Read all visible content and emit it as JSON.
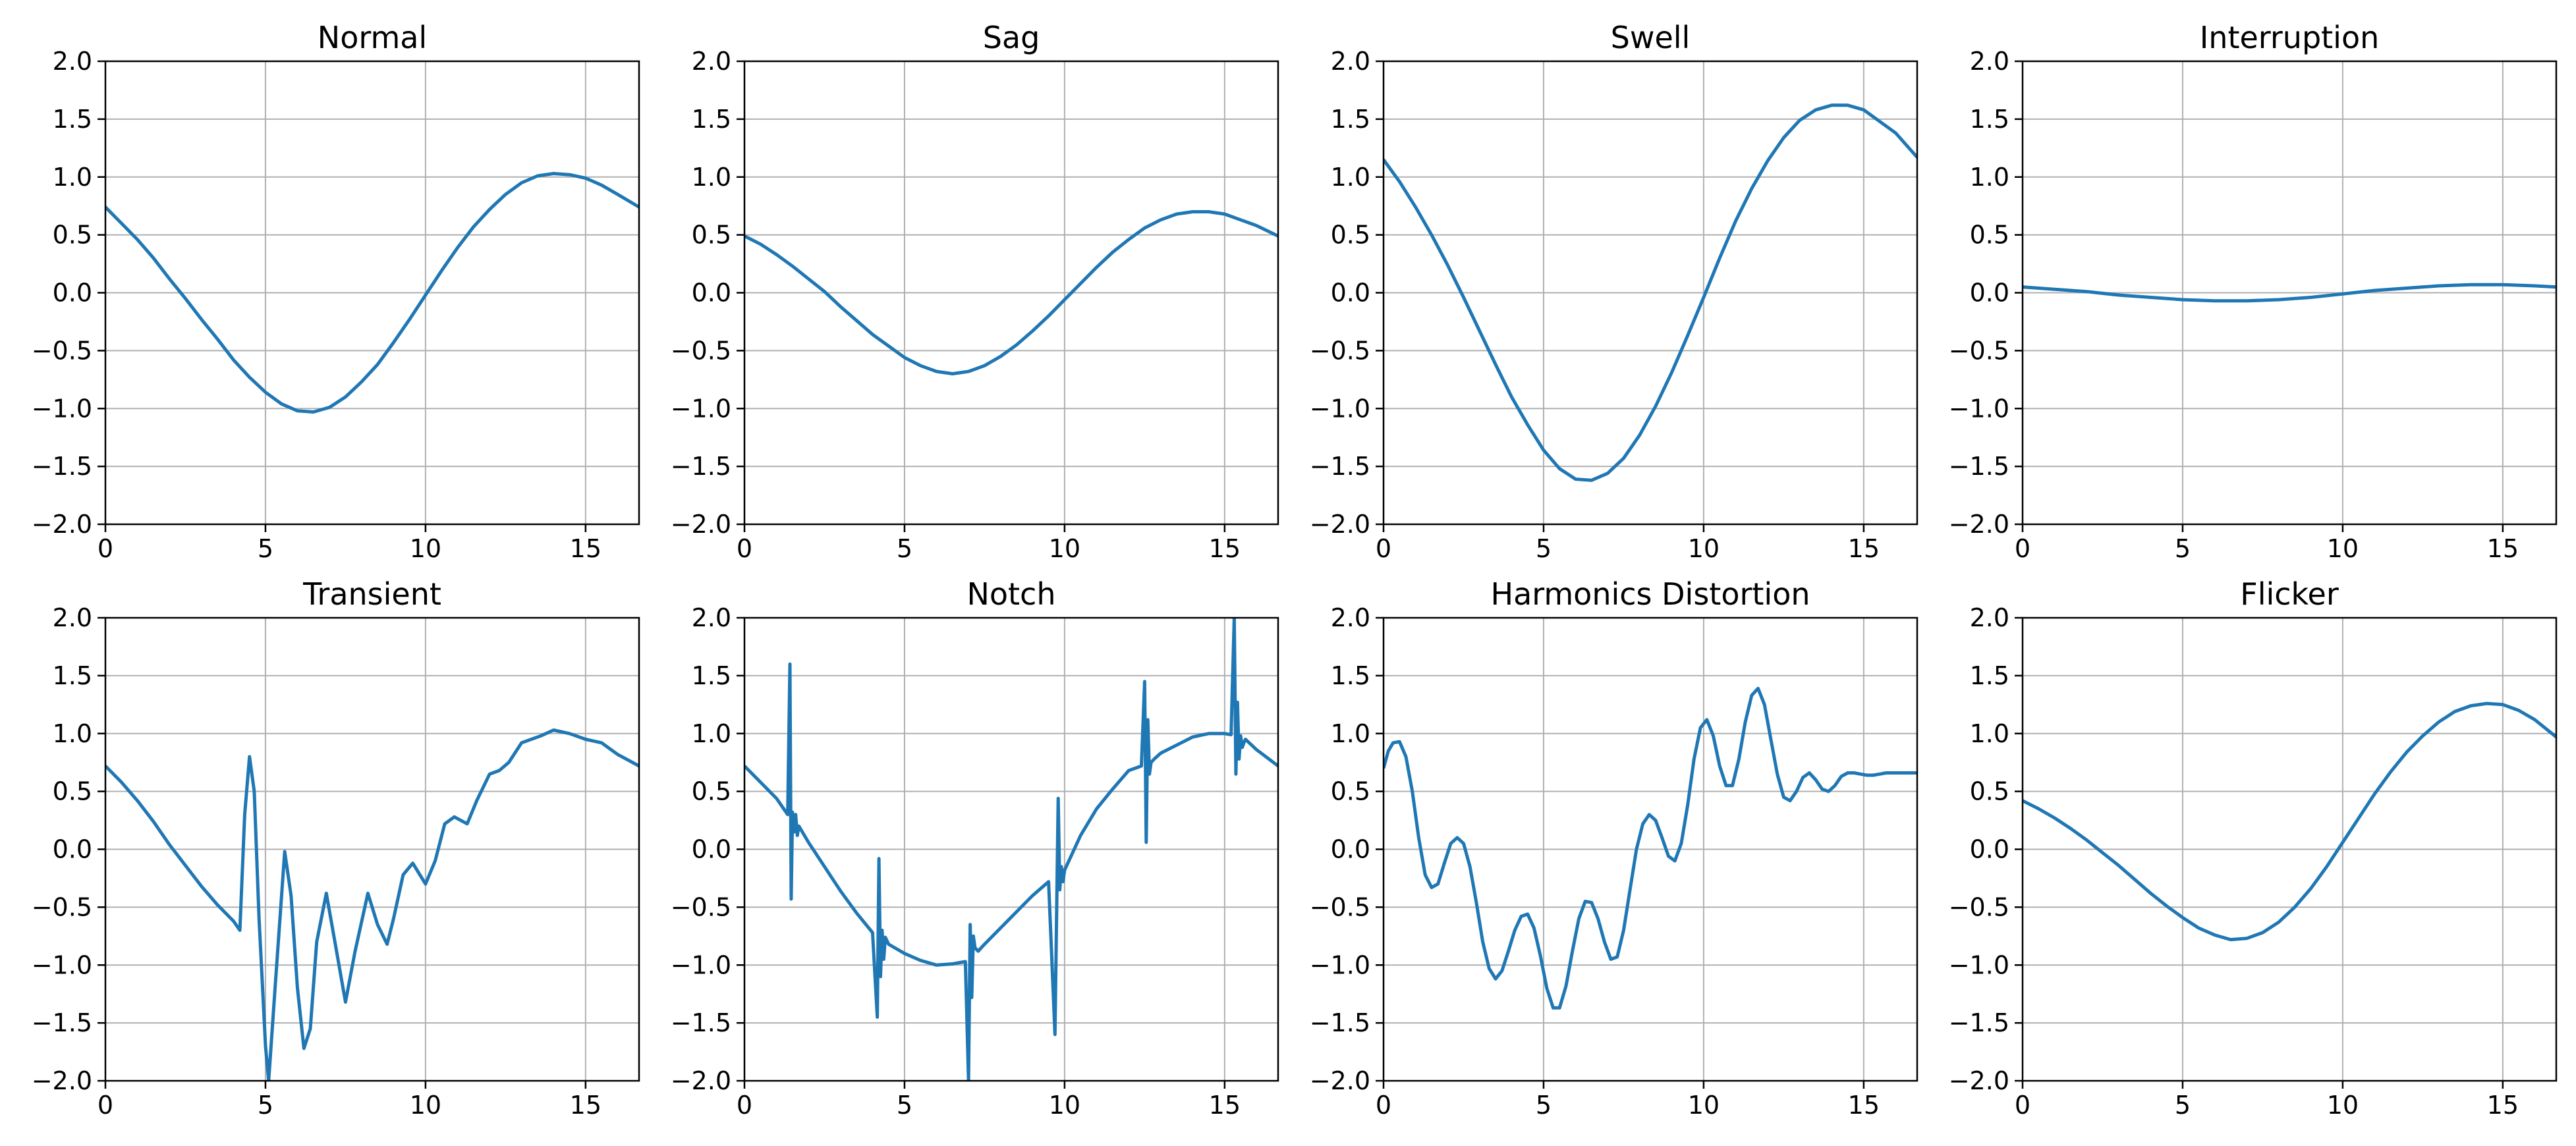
{
  "chart_data": [
    {
      "type": "line",
      "title": "Normal",
      "xlim": [
        0,
        16.67
      ],
      "ylim": [
        -2,
        2
      ],
      "grid": true,
      "xticks": [
        0,
        5,
        10,
        15
      ],
      "yticks": [
        -2,
        -1.5,
        -1,
        -0.5,
        0,
        0.5,
        1,
        1.5,
        2
      ],
      "xtick_labels": [
        "0",
        "5",
        "10",
        "15"
      ],
      "ytick_labels": [
        "−2.0",
        "−1.5",
        "−1.0",
        "−0.5",
        "0.0",
        "0.5",
        "1.0",
        "1.5",
        "2.0"
      ],
      "color": "#1f77b4",
      "series": [
        {
          "x": [
            0,
            0.5,
            1,
            1.5,
            2,
            2.5,
            3,
            3.5,
            4,
            4.5,
            5,
            5.5,
            6,
            6.5,
            7,
            7.5,
            8,
            8.5,
            9,
            9.5,
            10,
            10.5,
            11,
            11.5,
            12,
            12.5,
            13,
            13.5,
            14,
            14.5,
            15,
            15.5,
            16,
            16.67
          ],
          "y": [
            0.74,
            0.6,
            0.46,
            0.3,
            0.12,
            -0.05,
            -0.23,
            -0.4,
            -0.58,
            -0.73,
            -0.86,
            -0.96,
            -1.02,
            -1.03,
            -0.99,
            -0.9,
            -0.77,
            -0.62,
            -0.43,
            -0.23,
            -0.02,
            0.19,
            0.39,
            0.57,
            0.72,
            0.85,
            0.95,
            1.01,
            1.03,
            1.02,
            0.99,
            0.93,
            0.85,
            0.74
          ]
        }
      ]
    },
    {
      "type": "line",
      "title": "Sag",
      "xlim": [
        0,
        16.67
      ],
      "ylim": [
        -2,
        2
      ],
      "grid": true,
      "xticks": [
        0,
        5,
        10,
        15
      ],
      "yticks": [
        -2,
        -1.5,
        -1,
        -0.5,
        0,
        0.5,
        1,
        1.5,
        2
      ],
      "xtick_labels": [
        "0",
        "5",
        "10",
        "15"
      ],
      "ytick_labels": [
        "−2.0",
        "−1.5",
        "−1.0",
        "−0.5",
        "0.0",
        "0.5",
        "1.0",
        "1.5",
        "2.0"
      ],
      "color": "#1f77b4",
      "series": [
        {
          "x": [
            0,
            0.5,
            1,
            1.5,
            2,
            2.5,
            3,
            3.5,
            4,
            4.5,
            5,
            5.5,
            6,
            6.5,
            7,
            7.5,
            8,
            8.5,
            9,
            9.5,
            10,
            10.5,
            11,
            11.5,
            12,
            12.5,
            13,
            13.5,
            14,
            14.5,
            15,
            15.5,
            16,
            16.67
          ],
          "y": [
            0.49,
            0.42,
            0.33,
            0.23,
            0.12,
            0.01,
            -0.12,
            -0.24,
            -0.36,
            -0.46,
            -0.56,
            -0.63,
            -0.68,
            -0.7,
            -0.68,
            -0.63,
            -0.55,
            -0.45,
            -0.33,
            -0.2,
            -0.06,
            0.08,
            0.22,
            0.35,
            0.46,
            0.56,
            0.63,
            0.68,
            0.7,
            0.7,
            0.68,
            0.63,
            0.58,
            0.49
          ]
        }
      ]
    },
    {
      "type": "line",
      "title": "Swell",
      "xlim": [
        0,
        16.67
      ],
      "ylim": [
        -2,
        2
      ],
      "grid": true,
      "xticks": [
        0,
        5,
        10,
        15
      ],
      "yticks": [
        -2,
        -1.5,
        -1,
        -0.5,
        0,
        0.5,
        1,
        1.5,
        2
      ],
      "xtick_labels": [
        "0",
        "5",
        "10",
        "15"
      ],
      "ytick_labels": [
        "−2.0",
        "−1.5",
        "−1.0",
        "−0.5",
        "0.0",
        "0.5",
        "1.0",
        "1.5",
        "2.0"
      ],
      "color": "#1f77b4",
      "series": [
        {
          "x": [
            0,
            0.5,
            1,
            1.5,
            2,
            2.5,
            3,
            3.5,
            4,
            4.5,
            5,
            5.5,
            6,
            6.5,
            7,
            7.5,
            8,
            8.5,
            9,
            9.5,
            10,
            10.5,
            11,
            11.5,
            12,
            12.5,
            13,
            13.5,
            14,
            14.5,
            15,
            15.5,
            16,
            16.67
          ],
          "y": [
            1.15,
            0.96,
            0.74,
            0.5,
            0.24,
            -0.04,
            -0.33,
            -0.62,
            -0.9,
            -1.14,
            -1.36,
            -1.52,
            -1.61,
            -1.62,
            -1.56,
            -1.43,
            -1.23,
            -0.98,
            -0.69,
            -0.37,
            -0.04,
            0.3,
            0.62,
            0.9,
            1.14,
            1.34,
            1.49,
            1.58,
            1.62,
            1.62,
            1.58,
            1.48,
            1.38,
            1.17
          ]
        }
      ]
    },
    {
      "type": "line",
      "title": "Interruption",
      "xlim": [
        0,
        16.67
      ],
      "ylim": [
        -2,
        2
      ],
      "grid": true,
      "xticks": [
        0,
        5,
        10,
        15
      ],
      "yticks": [
        -2,
        -1.5,
        -1,
        -0.5,
        0,
        0.5,
        1,
        1.5,
        2
      ],
      "xtick_labels": [
        "0",
        "5",
        "10",
        "15"
      ],
      "ytick_labels": [
        "−2.0",
        "−1.5",
        "−1.0",
        "−0.5",
        "0.0",
        "0.5",
        "1.0",
        "1.5",
        "2.0"
      ],
      "color": "#1f77b4",
      "series": [
        {
          "x": [
            0,
            1,
            2,
            3,
            4,
            5,
            6,
            6.5,
            7,
            8,
            9,
            10,
            11,
            12,
            13,
            14,
            15,
            16,
            16.67
          ],
          "y": [
            0.05,
            0.03,
            0.01,
            -0.02,
            -0.04,
            -0.06,
            -0.07,
            -0.07,
            -0.07,
            -0.06,
            -0.04,
            -0.01,
            0.02,
            0.04,
            0.06,
            0.07,
            0.07,
            0.06,
            0.05
          ]
        }
      ]
    },
    {
      "type": "line",
      "title": "Transient",
      "xlim": [
        0,
        16.67
      ],
      "ylim": [
        -2,
        2
      ],
      "grid": true,
      "xticks": [
        0,
        5,
        10,
        15
      ],
      "yticks": [
        -2,
        -1.5,
        -1,
        -0.5,
        0,
        0.5,
        1,
        1.5,
        2
      ],
      "xtick_labels": [
        "0",
        "5",
        "10",
        "15"
      ],
      "ytick_labels": [
        "−2.0",
        "−1.5",
        "−1.0",
        "−0.5",
        "0.0",
        "0.5",
        "1.0",
        "1.5",
        "2.0"
      ],
      "color": "#1f77b4",
      "series": [
        {
          "x": [
            0,
            0.5,
            1,
            1.5,
            2,
            2.5,
            3,
            3.5,
            4,
            4.2,
            4.35,
            4.5,
            4.65,
            4.8,
            5.0,
            5.1,
            5.3,
            5.6,
            5.8,
            6.0,
            6.2,
            6.4,
            6.6,
            6.9,
            7.2,
            7.5,
            7.8,
            8.2,
            8.5,
            8.8,
            9.0,
            9.3,
            9.6,
            10.0,
            10.3,
            10.6,
            10.9,
            11.3,
            11.6,
            12.0,
            12.3,
            12.6,
            13.0,
            13.3,
            13.6,
            14.0,
            14.5,
            15.0,
            15.5,
            16.0,
            16.67
          ],
          "y": [
            0.72,
            0.58,
            0.42,
            0.24,
            0.04,
            -0.14,
            -0.32,
            -0.48,
            -0.62,
            -0.7,
            0.3,
            0.8,
            0.5,
            -0.6,
            -1.7,
            -2.0,
            -1.2,
            -0.02,
            -0.4,
            -1.2,
            -1.72,
            -1.55,
            -0.8,
            -0.38,
            -0.85,
            -1.32,
            -0.88,
            -0.38,
            -0.65,
            -0.82,
            -0.6,
            -0.22,
            -0.12,
            -0.3,
            -0.1,
            0.22,
            0.28,
            0.22,
            0.42,
            0.65,
            0.68,
            0.75,
            0.92,
            0.95,
            0.98,
            1.03,
            1.0,
            0.95,
            0.92,
            0.82,
            0.72
          ]
        }
      ]
    },
    {
      "type": "line",
      "title": "Notch",
      "xlim": [
        0,
        16.67
      ],
      "ylim": [
        -2,
        2
      ],
      "grid": true,
      "xticks": [
        0,
        5,
        10,
        15
      ],
      "yticks": [
        -2,
        -1.5,
        -1,
        -0.5,
        0,
        0.5,
        1,
        1.5,
        2
      ],
      "xtick_labels": [
        "0",
        "5",
        "10",
        "15"
      ],
      "ytick_labels": [
        "−2.0",
        "−1.5",
        "−1.0",
        "−0.5",
        "0.0",
        "0.5",
        "1.0",
        "1.5",
        "2.0"
      ],
      "color": "#1f77b4",
      "series": [
        {
          "x": [
            0,
            0.5,
            1,
            1.35,
            1.42,
            1.46,
            1.5,
            1.55,
            1.6,
            1.65,
            1.7,
            2,
            2.5,
            3,
            3.5,
            4,
            4.15,
            4.2,
            4.25,
            4.3,
            4.35,
            4.4,
            4.5,
            5,
            5.5,
            6,
            6.5,
            6.9,
            7.0,
            7.05,
            7.1,
            7.15,
            7.2,
            7.3,
            7.5,
            8,
            8.5,
            9,
            9.5,
            9.7,
            9.8,
            9.85,
            9.9,
            9.95,
            10.0,
            10.1,
            10.5,
            11,
            11.5,
            12,
            12.4,
            12.5,
            12.55,
            12.6,
            12.65,
            12.7,
            12.8,
            13,
            13.5,
            14,
            14.5,
            15,
            15.2,
            15.3,
            15.35,
            15.4,
            15.45,
            15.5,
            15.55,
            15.6,
            15.65,
            16,
            16.67
          ],
          "y": [
            0.72,
            0.58,
            0.44,
            0.3,
            1.6,
            -0.43,
            0.32,
            0.15,
            0.3,
            0.12,
            0.2,
            0.06,
            -0.15,
            -0.36,
            -0.55,
            -0.72,
            -1.45,
            -0.08,
            -1.1,
            -0.7,
            -0.95,
            -0.76,
            -0.82,
            -0.9,
            -0.96,
            -1.0,
            -0.99,
            -0.97,
            -2.0,
            -0.65,
            -1.28,
            -0.75,
            -0.85,
            -0.88,
            -0.82,
            -0.68,
            -0.54,
            -0.4,
            -0.28,
            -1.6,
            0.44,
            -0.35,
            -0.15,
            -0.28,
            -0.18,
            -0.12,
            0.12,
            0.35,
            0.52,
            0.68,
            0.72,
            1.45,
            0.06,
            1.12,
            0.65,
            0.75,
            0.78,
            0.83,
            0.9,
            0.97,
            1.0,
            1.0,
            0.99,
            2.0,
            0.65,
            1.27,
            0.78,
            0.98,
            0.88,
            0.92,
            0.95,
            0.86,
            0.72
          ]
        }
      ]
    },
    {
      "type": "line",
      "title": "Harmonics Distortion",
      "xlim": [
        0,
        16.67
      ],
      "ylim": [
        -2,
        2
      ],
      "grid": true,
      "xticks": [
        0,
        5,
        10,
        15
      ],
      "yticks": [
        -2,
        -1.5,
        -1,
        -0.5,
        0,
        0.5,
        1,
        1.5,
        2
      ],
      "xtick_labels": [
        "0",
        "5",
        "10",
        "15"
      ],
      "ytick_labels": [
        "−2.0",
        "−1.5",
        "−1.0",
        "−0.5",
        "0.0",
        "0.5",
        "1.0",
        "1.5",
        "2.0"
      ],
      "color": "#1f77b4",
      "series": [
        {
          "x": [
            0,
            0.15,
            0.3,
            0.5,
            0.7,
            0.9,
            1.1,
            1.3,
            1.5,
            1.7,
            1.9,
            2.1,
            2.3,
            2.5,
            2.7,
            2.9,
            3.1,
            3.3,
            3.5,
            3.7,
            3.9,
            4.1,
            4.3,
            4.5,
            4.7,
            4.9,
            5.1,
            5.3,
            5.5,
            5.7,
            5.9,
            6.1,
            6.3,
            6.5,
            6.7,
            6.9,
            7.1,
            7.3,
            7.5,
            7.7,
            7.9,
            8.1,
            8.3,
            8.5,
            8.7,
            8.9,
            9.1,
            9.3,
            9.5,
            9.7,
            9.9,
            10.1,
            10.3,
            10.5,
            10.7,
            10.9,
            11.1,
            11.3,
            11.5,
            11.7,
            11.9,
            12.1,
            12.3,
            12.5,
            12.7,
            12.9,
            13.1,
            13.3,
            13.5,
            13.7,
            13.9,
            14.1,
            14.3,
            14.5,
            14.7,
            14.9,
            15.1,
            15.3,
            15.5,
            15.7,
            15.9,
            16.1,
            16.3,
            16.5,
            16.67
          ],
          "y": [
            0.7,
            0.85,
            0.92,
            0.93,
            0.8,
            0.5,
            0.1,
            -0.22,
            -0.33,
            -0.3,
            -0.12,
            0.05,
            0.1,
            0.05,
            -0.15,
            -0.46,
            -0.8,
            -1.03,
            -1.12,
            -1.05,
            -0.88,
            -0.7,
            -0.58,
            -0.56,
            -0.68,
            -0.92,
            -1.2,
            -1.37,
            -1.37,
            -1.18,
            -0.88,
            -0.6,
            -0.45,
            -0.46,
            -0.6,
            -0.8,
            -0.95,
            -0.93,
            -0.7,
            -0.35,
            0.0,
            0.22,
            0.3,
            0.25,
            0.1,
            -0.06,
            -0.1,
            0.05,
            0.38,
            0.78,
            1.05,
            1.12,
            0.98,
            0.72,
            0.55,
            0.55,
            0.78,
            1.1,
            1.33,
            1.39,
            1.25,
            0.95,
            0.65,
            0.45,
            0.42,
            0.5,
            0.62,
            0.66,
            0.6,
            0.52,
            0.5,
            0.55,
            0.63,
            0.66,
            0.66,
            0.65,
            0.64,
            0.64,
            0.65,
            0.66,
            0.66,
            0.66,
            0.66,
            0.66,
            0.66
          ]
        }
      ]
    },
    {
      "type": "line",
      "title": "Flicker",
      "xlim": [
        0,
        16.67
      ],
      "ylim": [
        -2,
        2
      ],
      "grid": true,
      "xticks": [
        0,
        5,
        10,
        15
      ],
      "yticks": [
        -2,
        -1.5,
        -1,
        -0.5,
        0,
        0.5,
        1,
        1.5,
        2
      ],
      "xtick_labels": [
        "0",
        "5",
        "10",
        "15"
      ],
      "ytick_labels": [
        "−2.0",
        "−1.5",
        "−1.0",
        "−0.5",
        "0.0",
        "0.5",
        "1.0",
        "1.5",
        "2.0"
      ],
      "color": "#1f77b4",
      "series": [
        {
          "x": [
            0,
            0.5,
            1,
            1.5,
            2,
            2.5,
            3,
            3.5,
            4,
            4.5,
            5,
            5.5,
            6,
            6.5,
            7,
            7.5,
            8,
            8.5,
            9,
            9.5,
            10,
            10.5,
            11,
            11.5,
            12,
            12.5,
            13,
            13.5,
            14,
            14.5,
            15,
            15.5,
            16,
            16.67
          ],
          "y": [
            0.42,
            0.35,
            0.27,
            0.18,
            0.08,
            -0.03,
            -0.14,
            -0.26,
            -0.38,
            -0.49,
            -0.59,
            -0.68,
            -0.74,
            -0.78,
            -0.77,
            -0.72,
            -0.63,
            -0.5,
            -0.34,
            -0.15,
            0.06,
            0.27,
            0.48,
            0.67,
            0.84,
            0.98,
            1.1,
            1.19,
            1.24,
            1.26,
            1.25,
            1.2,
            1.12,
            0.97
          ]
        }
      ]
    }
  ]
}
